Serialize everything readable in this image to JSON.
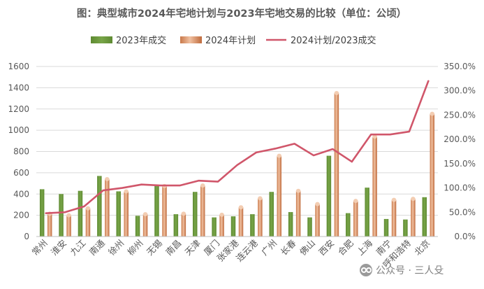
{
  "chart_data": {
    "type": "bar",
    "title": "图：典型城市2024年宅地计划与2023年宅地交易的比较（单位：公顷）",
    "categories": [
      "常州",
      "淮安",
      "九江",
      "南通",
      "徐州",
      "柳州",
      "无锡",
      "南昌",
      "天津",
      "厦门",
      "张家港",
      "连云港",
      "广州",
      "长春",
      "佛山",
      "西安",
      "合肥",
      "上海",
      "南宁",
      "呼和浩特",
      "北京"
    ],
    "series": [
      {
        "name": "2023年成交",
        "axis": "left",
        "kind": "bar",
        "color": "#6f9a3f",
        "values": [
          445,
          400,
          430,
          570,
          425,
          195,
          475,
          210,
          420,
          180,
          190,
          210,
          420,
          230,
          180,
          760,
          220,
          460,
          165,
          160,
          370
        ]
      },
      {
        "name": "2024年计划",
        "axis": "left",
        "kind": "bar",
        "color": "#d48c5c",
        "values": [
          215,
          200,
          265,
          540,
          425,
          210,
          475,
          215,
          480,
          205,
          275,
          360,
          760,
          430,
          305,
          1350,
          335,
          940,
          345,
          355,
          1155
        ]
      },
      {
        "name": "2024计划/2023成交",
        "axis": "right",
        "kind": "line",
        "color": "#d0566a",
        "values": [
          0.48,
          0.5,
          0.62,
          0.95,
          1.0,
          1.07,
          1.05,
          1.05,
          1.15,
          1.13,
          1.47,
          1.73,
          1.81,
          1.91,
          1.67,
          1.8,
          1.54,
          2.1,
          2.1,
          2.16,
          3.2
        ]
      }
    ],
    "y_left": {
      "min": 0,
      "max": 1600,
      "step": 200,
      "ticks": [
        "0",
        "200",
        "400",
        "600",
        "800",
        "1000",
        "1200",
        "1400",
        "1600"
      ]
    },
    "y_right": {
      "min": 0,
      "max": 3.5,
      "step": 0.5,
      "ticks": [
        "0.0%",
        "50.0%",
        "100.0%",
        "150.0%",
        "200.0%",
        "250.0%",
        "300.0%",
        "350.0%"
      ]
    },
    "grid": true,
    "legend_position": "top"
  },
  "watermark": {
    "icon": "wechat-official-account-icon",
    "text": "公众号 · 三人殳"
  }
}
